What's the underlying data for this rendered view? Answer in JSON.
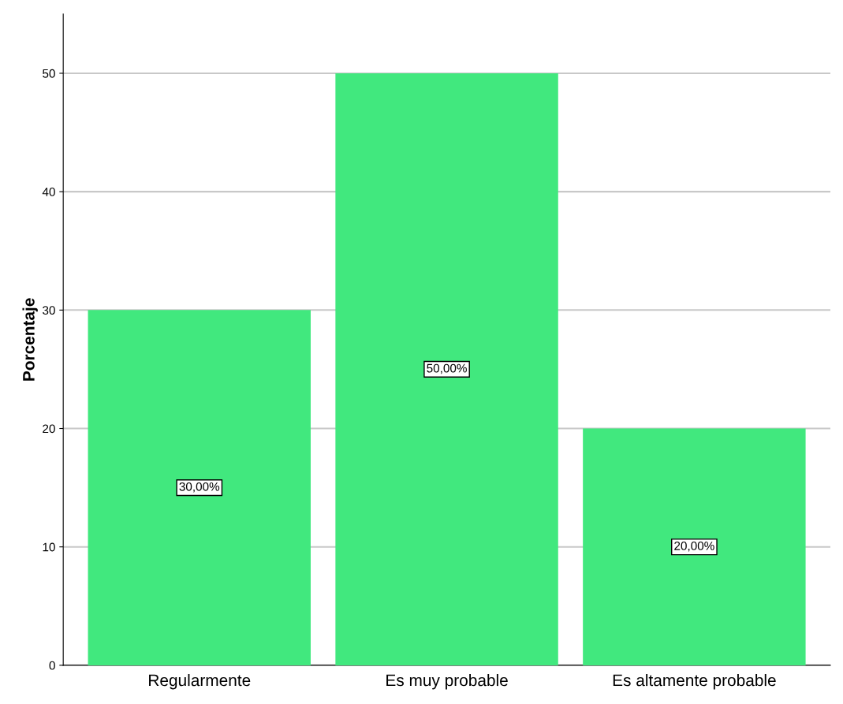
{
  "chart_data": {
    "type": "bar",
    "ylabel": "Porcentaje",
    "categories": [
      "Regularmente",
      "Es muy probable",
      "Es altamente probable"
    ],
    "values": [
      30,
      50,
      20
    ],
    "value_labels": [
      "30,00%",
      "50,00%",
      "20,00%"
    ],
    "color": "#41e87e",
    "ylim": [
      0,
      55
    ],
    "yticks": [
      0,
      10,
      20,
      30,
      40,
      50
    ],
    "grid": "y",
    "legend": false
  }
}
